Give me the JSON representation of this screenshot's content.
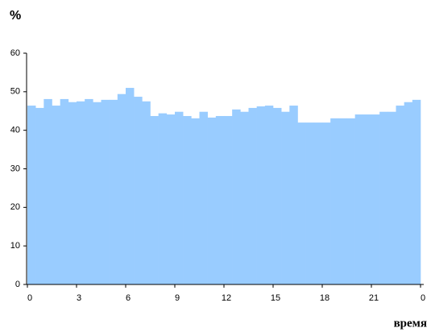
{
  "chart_data": {
    "type": "histogram",
    "ylabel": "%",
    "xlabel": "время",
    "color": "#99ccff",
    "bins": [
      0,
      0.5,
      1,
      1.5,
      2,
      2.5,
      3,
      3.5,
      4,
      4.5,
      5,
      5.5,
      6,
      6.5,
      7,
      7.5,
      8,
      8.5,
      9,
      9.5,
      10,
      10.5,
      11,
      11.5,
      12,
      12.5,
      13,
      13.5,
      14,
      14.5,
      15,
      15.5,
      16,
      16.5,
      17,
      17.5,
      18,
      18.5,
      19,
      19.5,
      20,
      20.5,
      21,
      21.5,
      22,
      22.5,
      23,
      23.5,
      24
    ],
    "values": [
      46.4,
      45.8,
      48.1,
      46.4,
      48.1,
      47.3,
      47.5,
      48.1,
      47.3,
      47.9,
      47.9,
      49.4,
      51.0,
      48.7,
      47.5,
      43.7,
      44.4,
      44.1,
      44.8,
      43.7,
      43.1,
      44.8,
      43.3,
      43.7,
      43.7,
      45.4,
      44.8,
      45.8,
      46.2,
      46.4,
      45.8,
      44.8,
      46.4,
      42.0,
      42.0,
      42.0,
      42.0,
      43.1,
      43.1,
      43.1,
      44.1,
      44.1,
      44.1,
      44.8,
      44.8,
      46.4,
      47.3,
      47.9
    ],
    "xlim": [
      0,
      24
    ],
    "xticks": [
      0,
      3,
      6,
      9,
      12,
      15,
      18,
      21,
      {
        "value": 24,
        "label": "0"
      }
    ],
    "ylim": [
      0,
      60
    ],
    "yticks": [
      0,
      10,
      20,
      30,
      40,
      50,
      60
    ]
  }
}
